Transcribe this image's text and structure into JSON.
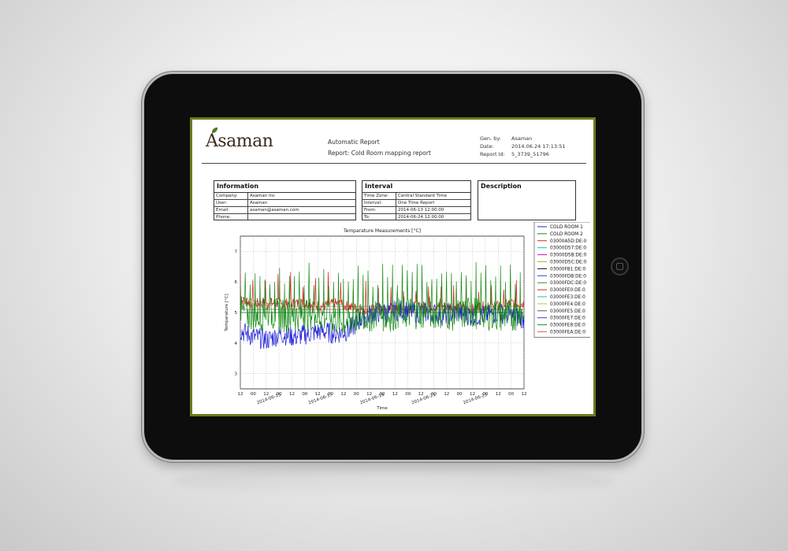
{
  "report": {
    "logo_text": "Asaman",
    "title": "Automatic Report",
    "subtitle": "Report: Cold Room mapping report",
    "meta": [
      {
        "label": "Gen. by:",
        "value": "Asaman"
      },
      {
        "label": "Date:",
        "value": "2014.06.24 17:13:51"
      },
      {
        "label": "Report Id:",
        "value": "5_3739_51796"
      }
    ]
  },
  "information": {
    "title": "Information",
    "rows": [
      {
        "label": "Company:",
        "value": "Asaman Inc"
      },
      {
        "label": "User:",
        "value": "Asaman"
      },
      {
        "label": "Email:",
        "value": "asaman@asaman.com"
      },
      {
        "label": "Phone:",
        "value": ""
      }
    ]
  },
  "interval": {
    "title": "Interval",
    "rows": [
      {
        "label": "Time Zone:",
        "value": "Central Standard Time"
      },
      {
        "label": "Interval:",
        "value": "One Time Report"
      },
      {
        "label": "From:",
        "value": "2014-06-13 12:00:00"
      },
      {
        "label": "To:",
        "value": "2014-06-24 12:00:00"
      }
    ]
  },
  "description": {
    "title": "Description"
  },
  "colors": {
    "frame_accent": "#6b7b1f",
    "tablet_body": "#0d0d0d"
  },
  "chart_data": {
    "type": "line",
    "title": "Temparature Measurements [°C]",
    "ylabel": "Temparature [°C]",
    "xlabel": "Time",
    "ylim": [
      2.5,
      7.5
    ],
    "yticks": [
      "3",
      "4",
      "5",
      "6",
      "7"
    ],
    "xticks": [
      "12",
      "00",
      "12",
      "00",
      "12",
      "00",
      "12",
      "00",
      "12",
      "00",
      "12",
      "00",
      "12",
      "00",
      "12",
      "00",
      "12",
      "00",
      "12",
      "00",
      "12",
      "00",
      "12"
    ],
    "date_labels": [
      "2014-06-15",
      "2014-06-17",
      "2014-06-19",
      "2014-06-21",
      "2014-06-23"
    ],
    "grid": true,
    "legend_position": "right",
    "series": [
      {
        "name": "COLD ROOM 1",
        "color": "#1f1fd8",
        "values": [
          4.4,
          4.2,
          4.1,
          4.3,
          4.2,
          4.3,
          4.4,
          4.3,
          4.4,
          4.8,
          5.0,
          5.0,
          5.1,
          5.0,
          5.0,
          4.9,
          5.0,
          4.9,
          4.9,
          5.0,
          4.9,
          4.8
        ]
      },
      {
        "name": "COLD ROOM 2",
        "color": "#148a14",
        "values": [
          5.0,
          4.9,
          5.0,
          4.9,
          4.9,
          5.0,
          4.9,
          4.8,
          4.7,
          4.9,
          4.9,
          4.9,
          5.0,
          5.0,
          5.0,
          5.0,
          4.9,
          5.0,
          5.0,
          4.9,
          4.9,
          5.0
        ]
      },
      {
        "name": "03000A5D:DE:0",
        "color": "#e01919",
        "values": [
          5.4,
          5.3,
          5.3,
          5.3,
          5.3,
          5.3,
          5.2,
          5.3,
          5.2,
          5.1,
          5.1,
          5.1,
          5.1,
          5.2,
          5.2,
          5.2,
          5.2,
          5.1,
          5.2,
          5.2,
          5.3,
          5.3
        ]
      },
      {
        "name": "03000D57:DE:0",
        "color": "#19b5b5",
        "values": [
          5.0,
          5.0,
          5.0,
          5.0,
          5.0,
          5.0,
          5.0,
          5.0,
          5.0,
          5.0,
          5.0,
          5.0,
          5.0,
          5.0,
          5.0,
          5.0,
          5.0,
          5.0,
          5.0,
          5.0,
          5.0,
          5.0
        ]
      },
      {
        "name": "03000D5B:DE:0",
        "color": "#b519b5",
        "values": [
          5.1,
          5.1,
          5.1,
          5.1,
          5.1,
          5.1,
          5.1,
          5.1,
          5.1,
          5.1,
          5.1,
          5.1,
          5.1,
          5.1,
          5.1,
          5.1,
          5.1,
          5.1,
          5.1,
          5.1,
          5.1,
          5.1
        ]
      },
      {
        "name": "03000D5C:DE:0",
        "color": "#b5b519",
        "values": [
          5.0,
          5.0,
          5.0,
          5.0,
          5.0,
          5.0,
          5.0,
          5.0,
          5.0,
          5.0,
          5.0,
          5.0,
          5.0,
          5.0,
          5.0,
          5.0,
          5.0,
          5.0,
          5.0,
          5.0,
          5.0,
          5.0
        ]
      },
      {
        "name": "03000FB1:DE:0",
        "color": "#111111",
        "values": [
          5.5,
          5.4,
          5.3,
          5.3,
          5.2,
          5.2,
          5.2,
          5.2,
          5.2,
          5.2,
          5.2,
          5.2,
          5.2,
          5.2,
          5.2,
          5.2,
          5.2,
          5.2,
          5.2,
          5.2,
          5.2,
          5.2
        ]
      },
      {
        "name": "03000FDB:DE:0",
        "color": "#3b3bd0",
        "values": [
          5.0,
          5.0,
          5.0,
          5.0,
          5.0,
          5.0,
          5.0,
          5.0,
          5.0,
          5.0,
          5.0,
          5.0,
          5.0,
          5.0,
          5.0,
          5.0,
          5.0,
          5.0,
          5.0,
          5.0,
          5.0,
          5.0
        ]
      },
      {
        "name": "03000FDC:DE:0",
        "color": "#2a8a2a",
        "values": [
          5.0,
          5.0,
          5.0,
          5.0,
          5.0,
          5.0,
          5.0,
          5.0,
          5.0,
          5.0,
          5.0,
          5.0,
          5.0,
          5.0,
          5.0,
          5.0,
          5.0,
          5.0,
          5.0,
          5.0,
          5.0,
          5.0
        ]
      },
      {
        "name": "03000FE0:DE:0",
        "color": "#d02a2a",
        "values": [
          5.1,
          5.1,
          5.1,
          5.1,
          5.1,
          5.1,
          5.1,
          5.1,
          5.1,
          5.1,
          5.1,
          5.1,
          5.1,
          5.1,
          5.1,
          5.1,
          5.1,
          5.1,
          5.1,
          5.1,
          5.1,
          5.1
        ]
      },
      {
        "name": "03000FE3:DE:0",
        "color": "#2ab5b5",
        "values": [
          5.0,
          5.0,
          5.0,
          5.0,
          5.0,
          5.0,
          5.0,
          5.0,
          5.0,
          5.0,
          5.0,
          5.0,
          5.0,
          5.0,
          5.0,
          5.0,
          5.0,
          5.0,
          5.0,
          5.0,
          5.0,
          5.0
        ]
      },
      {
        "name": "03000FE4:DE:0",
        "color": "#c4c42a",
        "values": [
          5.0,
          5.0,
          5.0,
          5.0,
          5.0,
          5.0,
          5.0,
          5.0,
          5.0,
          5.0,
          5.0,
          5.0,
          5.0,
          5.0,
          5.0,
          5.0,
          5.0,
          5.0,
          5.0,
          5.0,
          5.0,
          5.0
        ]
      },
      {
        "name": "03000FE5:DE:0",
        "color": "#555555",
        "values": [
          5.0,
          5.0,
          5.0,
          5.0,
          5.0,
          5.0,
          5.0,
          5.0,
          5.0,
          5.0,
          5.0,
          5.0,
          5.0,
          5.0,
          5.0,
          5.0,
          5.0,
          5.0,
          5.0,
          5.0,
          5.0,
          5.0
        ]
      },
      {
        "name": "03000FE7:DE:0",
        "color": "#3a3acc",
        "values": [
          5.0,
          5.0,
          5.0,
          5.0,
          5.0,
          5.0,
          5.0,
          5.0,
          5.0,
          5.0,
          5.0,
          5.0,
          5.0,
          5.0,
          5.0,
          5.0,
          5.0,
          5.0,
          5.0,
          5.0,
          5.0,
          5.0
        ]
      },
      {
        "name": "03000FE8:DE:0",
        "color": "#1f8f1f",
        "values": [
          5.0,
          5.0,
          5.0,
          5.0,
          5.0,
          5.0,
          5.0,
          5.0,
          5.0,
          5.0,
          5.0,
          5.0,
          5.0,
          5.0,
          5.0,
          5.0,
          5.0,
          5.0,
          5.0,
          5.0,
          5.0,
          5.0
        ]
      },
      {
        "name": "03000FEA:DE:0",
        "color": "#e06060",
        "values": [
          5.1,
          5.1,
          5.1,
          5.1,
          5.1,
          5.1,
          5.1,
          5.1,
          5.1,
          5.1,
          5.1,
          5.1,
          5.1,
          5.1,
          5.1,
          5.1,
          5.1,
          5.1,
          5.1,
          5.1,
          5.1,
          5.1
        ]
      }
    ]
  }
}
